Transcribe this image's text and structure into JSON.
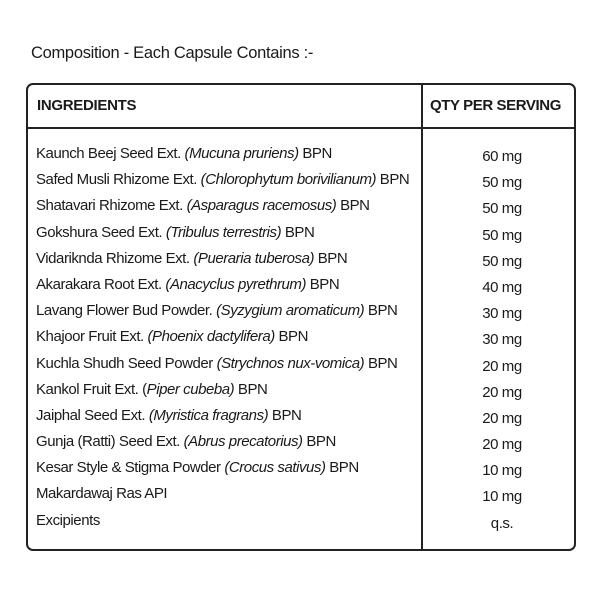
{
  "title": "Composition - Each Capsule Contains :-",
  "table": {
    "headers": {
      "ingredients": "INGREDIENTS",
      "qty": "QTY PER SERVING"
    },
    "rows": [
      {
        "name": "Kaunch Beej Seed Ext.",
        "latin": "(Mucuna pruriens)",
        "suffix": "BPN",
        "qty": "60 mg"
      },
      {
        "name": "Safed Musli Rhizome Ext.",
        "latin": "(Chlorophytum borivilianum)",
        "suffix": "BPN",
        "qty": "50 mg"
      },
      {
        "name": "Shatavari Rhizome Ext.",
        "latin": "(Asparagus racemosus)",
        "suffix": "BPN",
        "qty": "50 mg"
      },
      {
        "name": "Gokshura Seed Ext.",
        "latin": "(Tribulus terrestris)",
        "suffix": "BPN",
        "qty": "50 mg"
      },
      {
        "name": "Vidariknda Rhizome Ext.",
        "latin": "(Pueraria tuberosa)",
        "suffix": "BPN",
        "qty": "50 mg"
      },
      {
        "name": "Akarakara Root Ext.",
        "latin": "(Anacyclus pyrethrum)",
        "suffix": "BPN",
        "qty": "40 mg"
      },
      {
        "name": "Lavang Flower Bud Powder.",
        "latin": "(Syzygium aromaticum)",
        "suffix": "BPN",
        "qty": "30 mg"
      },
      {
        "name": "Khajoor Fruit Ext.",
        "latin": "(Phoenix dactylifera)",
        "suffix": "BPN",
        "qty": "30 mg"
      },
      {
        "name": "Kuchla Shudh Seed Powder",
        "latin": "(Strychnos nux-vomica)",
        "suffix": "BPN",
        "qty": "20 mg"
      },
      {
        "name": "Kankol Fruit Ext. (",
        "latin": "Piper cubeba)",
        "suffix": "BPN",
        "qty": "20 mg"
      },
      {
        "name": "Jaiphal Seed Ext.",
        "latin": "(Myristica fragrans)",
        "suffix": "BPN",
        "qty": "20 mg"
      },
      {
        "name": "Gunja (Ratti) Seed Ext.",
        "latin": "(Abrus precatorius)",
        "suffix": "BPN",
        "qty": "20 mg"
      },
      {
        "name": "Kesar Style & Stigma Powder",
        "latin": "(Crocus sativus)",
        "suffix": "BPN",
        "qty": "10 mg"
      },
      {
        "name": "Makardawaj Ras API",
        "latin": "",
        "suffix": "",
        "qty": "10 mg"
      },
      {
        "name": "Excipients",
        "latin": "",
        "suffix": "",
        "qty": "q.s."
      }
    ]
  }
}
